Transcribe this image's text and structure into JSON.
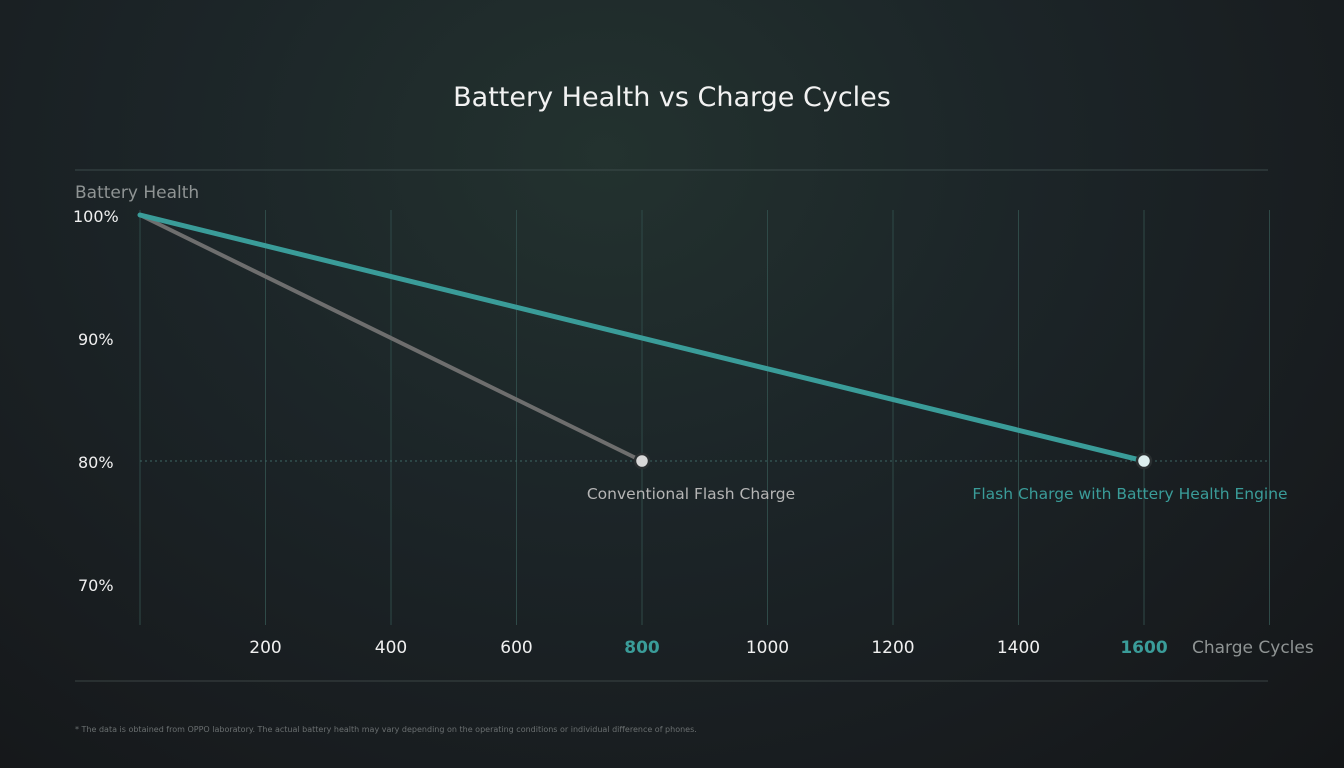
{
  "chart_data": {
    "type": "line",
    "title": "Battery Health vs Charge Cycles",
    "ylabel": "Battery Health",
    "xlabel": "Charge Cycles",
    "xlim": [
      0,
      1800
    ],
    "ylim": [
      70,
      100
    ],
    "x_ticks": [
      "200",
      "400",
      "600",
      "800",
      "1000",
      "1200",
      "1400",
      "1600"
    ],
    "y_ticks": [
      "100%",
      "90%",
      "80%",
      "70%"
    ],
    "grid": true,
    "reference_line": 80,
    "series": [
      {
        "name": "Conventional Flash Charge",
        "color": "#6e6e6e",
        "x": [
          0,
          800
        ],
        "y": [
          100,
          80
        ]
      },
      {
        "name": "Flash Charge with Battery Health Engine",
        "color": "#3a9c99",
        "x": [
          0,
          1600
        ],
        "y": [
          100,
          80
        ]
      }
    ],
    "highlight_ticks": [
      "800",
      "1600"
    ],
    "highlight_color": "#3a9c99"
  },
  "footnote": "* The data is obtained from OPPO laboratory. The actual battery health may vary depending on the operating conditions or individual difference of phones."
}
